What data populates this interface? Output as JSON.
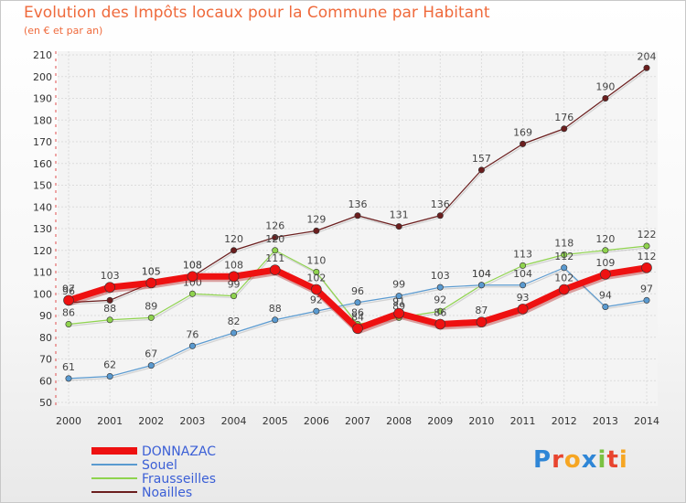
{
  "title": "Evolution des Impôts locaux pour la Commune par Habitant",
  "subtitle": "(en € et par an)",
  "logo_text": "Proxiti",
  "chart_data": {
    "type": "line",
    "title": "Evolution des Impôts locaux pour la Commune par Habitant",
    "ylabel": "(en € et par an)",
    "xlabel": "",
    "x": [
      "2000",
      "2001",
      "2002",
      "2003",
      "2004",
      "2005",
      "2006",
      "2007",
      "2008",
      "2009",
      "2010",
      "2011",
      "2012",
      "2013",
      "2014"
    ],
    "ylim": [
      50,
      210
    ],
    "yticks": [
      50,
      60,
      70,
      80,
      90,
      100,
      110,
      120,
      130,
      140,
      150,
      160,
      170,
      180,
      190,
      200,
      210
    ],
    "legend": "bottom-left",
    "grid": true,
    "series": [
      {
        "name": "Noailles",
        "color": "#6b1e1e",
        "width": 1.2,
        "values": [
          96,
          97,
          105,
          108,
          120,
          126,
          129,
          136,
          131,
          136,
          157,
          169,
          176,
          190,
          204
        ]
      },
      {
        "name": "Fraussei lles",
        "color": "#8fd34e",
        "width": 1.2,
        "values": [
          86,
          88,
          89,
          100,
          99,
          120,
          110,
          86,
          89,
          92,
          104,
          113,
          118,
          120,
          122
        ]
      },
      {
        "name": "Souel",
        "color": "#5a9ad0",
        "width": 1.2,
        "values": [
          61,
          62,
          67,
          76,
          82,
          88,
          92,
          96,
          99,
          103,
          104,
          104,
          112,
          94,
          97
        ]
      },
      {
        "name": "DONNAZAC",
        "color": "#ee1111",
        "width": 7,
        "values": [
          97,
          103,
          105,
          108,
          108,
          111,
          102,
          84,
          91,
          86,
          87,
          93,
          102,
          109,
          112
        ]
      }
    ]
  }
}
